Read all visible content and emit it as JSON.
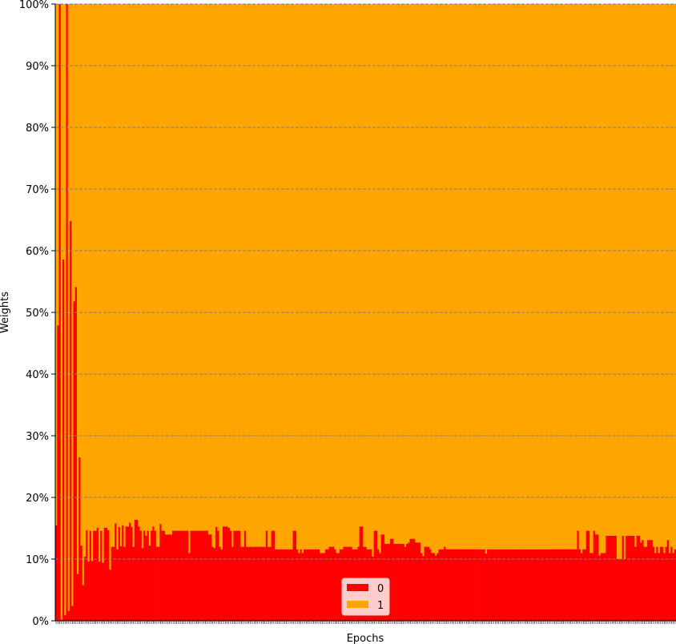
{
  "chart_data": {
    "type": "bar",
    "stacked": true,
    "normalized_percent": true,
    "xlabel": "Epochs",
    "ylabel": "Weights",
    "ylim": [
      0,
      100
    ],
    "y_ticks": [
      "0%",
      "10%",
      "20%",
      "30%",
      "40%",
      "50%",
      "60%",
      "70%",
      "80%",
      "90%",
      "100%"
    ],
    "grid": "horizontal dashed",
    "legend": "bottom-center",
    "x_tick_labels_visible": false,
    "num_epochs": 345,
    "series": [
      {
        "name": "0",
        "color": "#ff0000",
        "values": [
          15.5,
          47.9,
          100.0,
          0.2,
          58.6,
          1.7,
          0.9,
          100.0,
          1.6,
          64.8,
          64.3,
          2.4,
          51.8,
          54.1,
          7.6,
          18.8,
          26.5,
          12.2,
          5.8,
          10.4,
          15.1,
          14.7,
          9.6,
          14.6,
          9.7,
          14.6,
          12.5,
          14.6,
          15.1,
          9.6,
          14.6,
          15.1,
          9.4,
          15.1,
          15.1,
          14.7,
          14.5,
          8.3,
          12.0,
          12.0,
          15.8,
          15.8,
          11.6,
          15.2,
          12.1,
          15.5,
          12.5,
          12.0,
          15.3,
          15.3,
          15.9,
          15.2,
          12.0,
          12.0,
          16.4,
          16.4,
          15.3,
          14.6,
          14.6,
          11.8,
          14.6,
          13.8,
          14.6,
          14.6,
          12.2,
          14.6,
          15.3,
          15.7,
          14.6,
          12.0,
          12.0,
          15.7,
          15.2,
          14.6,
          14.6,
          14.0,
          14.0,
          14.0,
          14.0,
          14.0,
          14.6,
          14.6,
          14.6,
          15.2,
          14.6,
          14.6,
          14.6,
          14.6,
          14.6,
          14.6,
          14.6,
          11.0,
          14.6,
          14.6,
          14.6,
          14.6,
          14.6,
          14.6,
          14.6,
          14.6,
          14.6,
          14.6,
          14.6,
          14.6,
          14.0,
          14.0,
          14.0,
          12.0,
          11.8,
          14.6,
          15.2,
          14.6,
          12.0,
          11.6,
          15.3,
          15.3,
          15.3,
          15.3,
          15.1,
          14.6,
          14.6,
          12.0,
          14.6,
          14.6,
          14.6,
          14.6,
          14.6,
          12.0,
          12.0,
          14.6,
          12.0,
          12.0,
          12.0,
          12.0,
          12.0,
          12.0,
          12.0,
          12.0,
          12.0,
          12.0,
          14.6,
          12.0,
          12.0,
          12.0,
          14.6,
          12.0,
          12.0,
          12.0,
          14.6,
          14.6,
          11.6,
          11.6,
          11.6,
          11.6,
          11.6,
          11.6,
          11.6,
          11.6,
          11.6,
          11.6,
          11.6,
          11.6,
          11.6,
          14.6,
          14.6,
          11.6,
          11.6,
          11.0,
          11.6,
          11.0,
          11.6,
          11.6,
          11.6,
          11.6,
          11.6,
          11.6,
          11.6,
          12.0,
          11.6,
          11.6,
          11.6,
          11.0,
          11.0,
          11.0,
          11.0,
          11.6,
          11.6,
          11.6,
          12.0,
          12.0,
          12.0,
          11.6,
          11.6,
          11.0,
          11.0,
          11.6,
          11.6,
          15.2,
          12.0,
          12.0,
          12.0,
          12.0,
          12.0,
          11.6,
          11.6,
          11.6,
          11.6,
          12.0,
          15.3,
          15.3,
          15.3,
          12.0,
          12.0,
          12.0,
          11.6,
          11.6,
          11.6,
          10.4,
          11.0,
          14.6,
          14.6,
          11.6,
          11.0,
          11.0,
          14.0,
          14.0,
          12.5,
          12.5,
          12.5,
          13.1,
          13.3,
          13.3,
          12.5,
          12.5,
          12.0,
          12.5,
          12.5,
          12.5,
          12.5,
          12.5,
          12.0,
          12.5,
          12.7,
          13.3,
          13.3,
          13.3,
          13.3,
          12.7,
          12.7,
          12.7,
          12.7,
          11.0,
          10.5,
          12.0,
          12.0,
          12.0,
          12.0,
          11.6,
          11.0,
          11.0,
          11.0,
          10.6,
          11.0,
          11.6,
          11.6,
          11.6,
          11.6,
          12.0,
          11.6,
          11.6,
          11.6,
          11.6,
          11.6,
          11.6,
          11.6,
          11.6,
          11.6,
          11.6,
          11.6,
          11.6,
          11.6,
          11.6,
          11.6,
          11.6,
          11.6,
          11.6,
          11.6,
          11.6,
          11.6,
          11.6,
          11.6,
          11.6,
          11.6,
          11.6,
          11.6,
          10.9,
          11.6,
          11.6,
          11.6,
          11.6,
          11.6,
          11.6,
          11.6,
          11.6,
          11.6,
          11.6,
          11.6,
          11.6,
          11.6,
          11.6,
          11.6,
          11.6,
          11.6,
          11.6,
          11.6,
          11.6,
          11.6,
          11.6,
          11.6,
          11.6,
          11.6,
          11.6,
          11.6,
          11.6,
          11.6,
          11.6,
          11.6,
          11.6,
          11.6,
          11.6,
          11.6,
          11.6,
          11.6,
          11.6,
          11.6
        ]
      },
      {
        "name": "1",
        "color": "#ffa500",
        "values_complement_of": "0"
      }
    ],
    "tail_values_series_0": [
      11.6,
      11.6,
      11.6,
      11.6,
      11.6,
      11.6,
      11.6,
      11.6,
      11.6,
      11.6,
      11.6,
      11.6,
      11.6,
      11.6,
      11.6,
      11.6,
      11.6,
      11.6,
      11.6,
      11.6,
      11.6,
      11.6,
      11.6,
      14.6,
      11.6,
      11.6,
      11.0,
      11.6,
      11.6,
      11.6,
      14.6,
      14.6,
      11.0,
      11.0,
      11.0,
      14.6,
      14.0,
      14.0,
      10.6,
      10.6,
      11.0,
      11.0,
      11.0,
      13.8,
      13.8,
      13.8,
      13.8,
      13.8,
      13.8,
      13.8,
      11.0,
      10.0,
      10.0,
      10.0,
      13.8,
      13.0,
      10.0,
      13.8,
      13.8,
      13.8,
      13.8,
      13.8,
      13.8,
      12.0,
      13.8,
      13.8,
      13.8,
      12.7,
      13.1,
      12.0,
      12.0,
      13.1,
      13.1,
      13.1,
      13.1,
      12.0,
      11.6,
      11.0,
      12.0,
      11.0,
      12.0,
      11.0,
      12.0,
      11.0,
      12.0,
      13.1,
      12.7,
      11.0,
      12.0,
      11.0,
      11.6,
      13.8
    ]
  }
}
